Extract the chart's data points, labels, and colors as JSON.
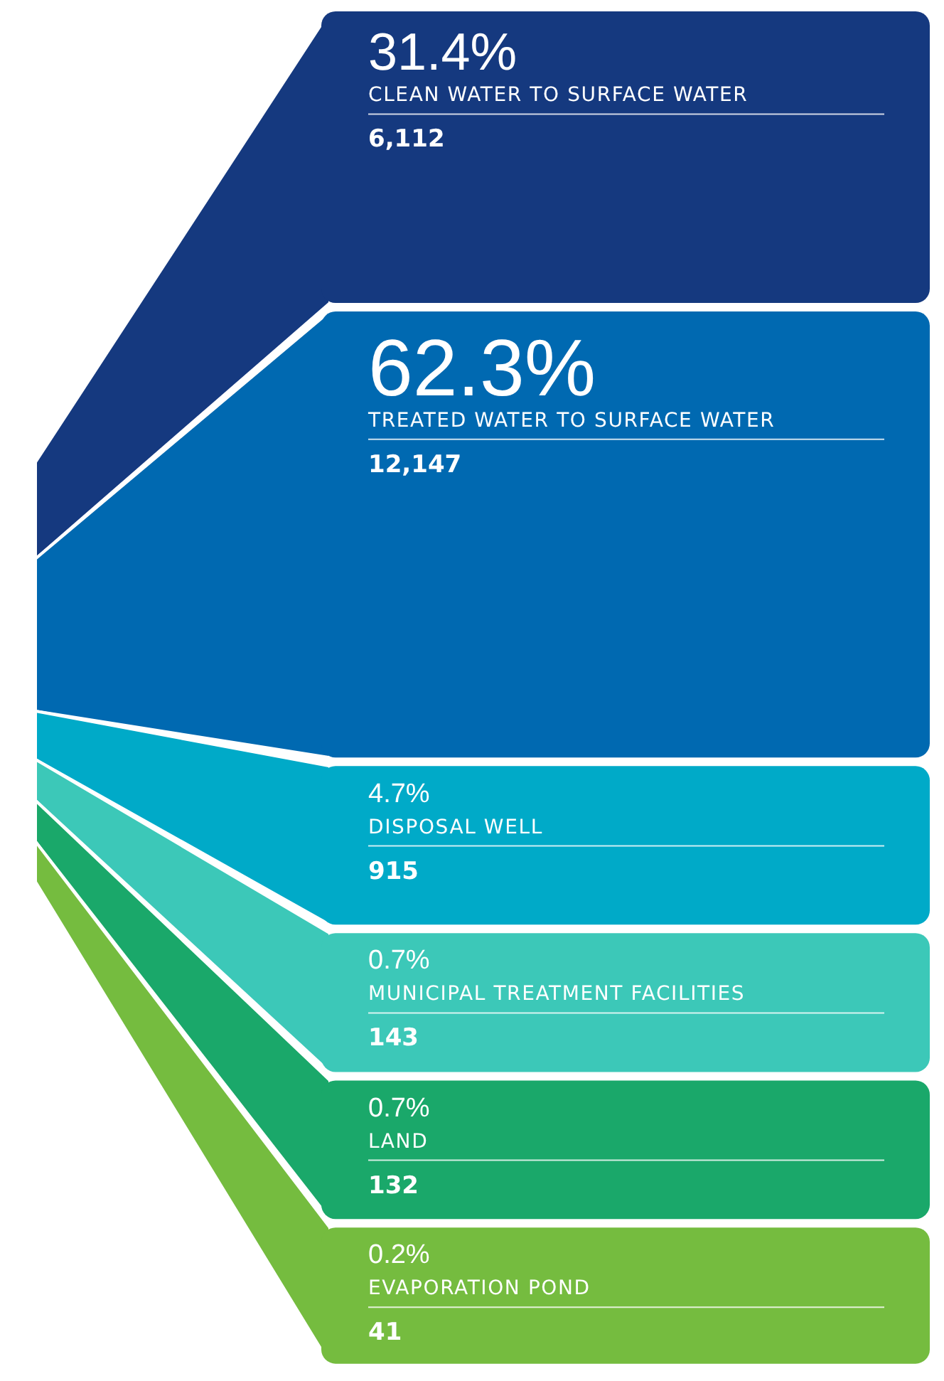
{
  "chart_data": {
    "type": "other",
    "categories": [
      "CLEAN WATER TO SURFACE WATER",
      "TREATED WATER TO SURFACE WATER",
      "DISPOSAL WELL",
      "MUNICIPAL TREATMENT FACILITIES",
      "LAND",
      "EVAPORATION POND"
    ],
    "series": [
      {
        "colors": [
          "#15397f",
          "#0069b1",
          "#00aac8",
          "#3cc8b8",
          "#1aa86a",
          "#75bc3f"
        ],
        "values": [
          6112,
          12147,
          915,
          143,
          132,
          41
        ],
        "value_labels": [
          "6,112",
          "12,147",
          "915",
          "143",
          "132",
          "41"
        ]
      },
      {
        "colors": [
          "#15397f",
          "#0069b1",
          "#00aac8",
          "#3cc8b8",
          "#1aa86a",
          "#75bc3f"
        ],
        "values": [
          31.4,
          62.3,
          4.7,
          0.7,
          0.7,
          0.2
        ],
        "value_labels": [
          "31.4%",
          "62.3%",
          "4.7%",
          "0.7%",
          "0.7%",
          "0.2%"
        ]
      }
    ]
  }
}
